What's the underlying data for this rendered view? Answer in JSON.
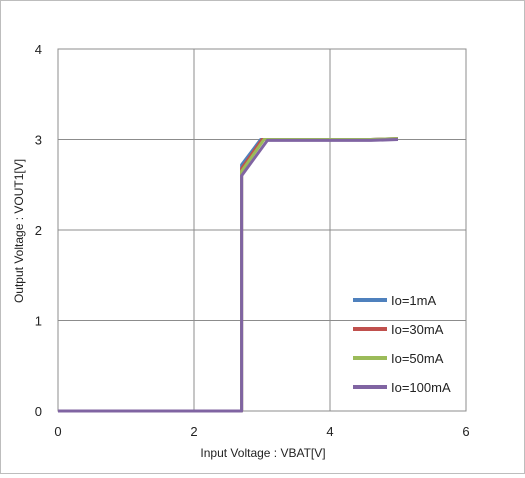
{
  "chart_data": {
    "type": "line",
    "title": "",
    "xlabel": "Input Voltage : VBAT[V]",
    "ylabel": "Output Voltage : VOUT1[V]",
    "xlim": [
      0,
      6
    ],
    "ylim": [
      0,
      4
    ],
    "x_ticks": [
      "0",
      "2",
      "4",
      "6"
    ],
    "y_ticks": [
      "0",
      "1",
      "2",
      "3",
      "4"
    ],
    "grid": true,
    "legend_position": "right",
    "series": [
      {
        "name": "Io=1mA",
        "color": "#4f81bd",
        "points": [
          [
            0,
            0
          ],
          [
            2.7,
            0
          ],
          [
            2.7,
            2.72
          ],
          [
            2.98,
            3.0
          ],
          [
            4.6,
            3.0
          ],
          [
            5.0,
            3.01
          ]
        ]
      },
      {
        "name": "Io=30mA",
        "color": "#c0504d",
        "points": [
          [
            0,
            0
          ],
          [
            2.7,
            0
          ],
          [
            2.7,
            2.68
          ],
          [
            3.0,
            3.0
          ],
          [
            4.6,
            3.0
          ],
          [
            5.0,
            3.01
          ]
        ]
      },
      {
        "name": "Io=50mA",
        "color": "#9bbb59",
        "points": [
          [
            0,
            0
          ],
          [
            2.7,
            0
          ],
          [
            2.7,
            2.65
          ],
          [
            3.03,
            3.0
          ],
          [
            4.6,
            3.0
          ],
          [
            5.0,
            3.01
          ]
        ]
      },
      {
        "name": "Io=100mA",
        "color": "#8064a2",
        "points": [
          [
            0,
            0
          ],
          [
            2.7,
            0
          ],
          [
            2.7,
            2.6
          ],
          [
            3.08,
            2.99
          ],
          [
            4.6,
            2.99
          ],
          [
            5.0,
            3.0
          ]
        ]
      }
    ]
  }
}
